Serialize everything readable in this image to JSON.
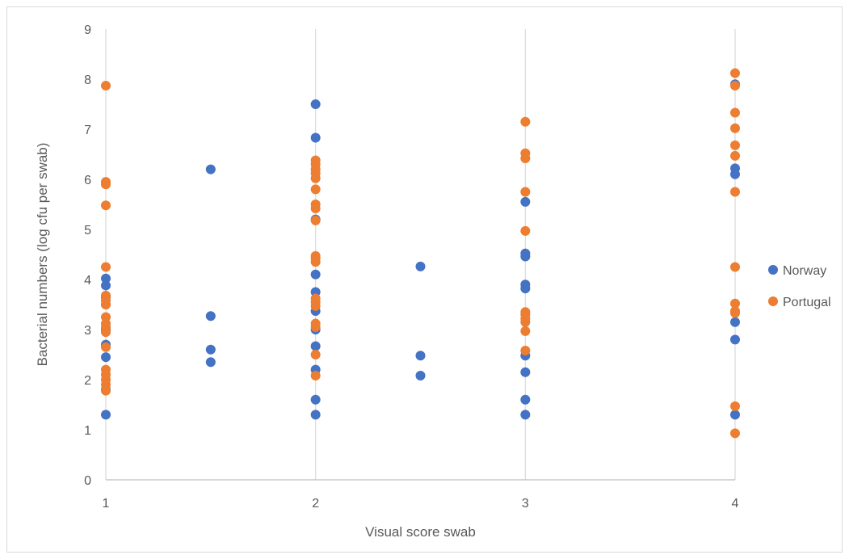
{
  "chart_data": {
    "type": "scatter",
    "title": "",
    "xlabel": "Visual score swab",
    "ylabel": "Bacterial numbers (log cfu per swab)",
    "xlim": [
      1,
      4
    ],
    "ylim": [
      0,
      9
    ],
    "x_ticks": [
      "1",
      "2",
      "3",
      "4"
    ],
    "y_ticks": [
      "0",
      "1",
      "2",
      "3",
      "4",
      "5",
      "6",
      "7",
      "8",
      "9"
    ],
    "grid": "vertical",
    "legend_position": "right",
    "series": [
      {
        "name": "Norway",
        "color": "#4472C4",
        "points": [
          [
            1,
            1.3
          ],
          [
            1,
            1.8
          ],
          [
            1,
            2.45
          ],
          [
            1,
            2.7
          ],
          [
            1,
            3.0
          ],
          [
            1,
            3.5
          ],
          [
            1,
            3.65
          ],
          [
            1,
            3.88
          ],
          [
            1,
            4.02
          ],
          [
            1.5,
            2.35
          ],
          [
            1.5,
            2.6
          ],
          [
            1.5,
            3.27
          ],
          [
            1.5,
            6.2
          ],
          [
            2,
            1.3
          ],
          [
            2,
            1.6
          ],
          [
            2,
            2.2
          ],
          [
            2,
            2.67
          ],
          [
            2,
            3.0
          ],
          [
            2,
            3.37
          ],
          [
            2,
            3.75
          ],
          [
            2,
            4.1
          ],
          [
            2,
            5.2
          ],
          [
            2,
            6.83
          ],
          [
            2,
            7.5
          ],
          [
            2.5,
            2.08
          ],
          [
            2.5,
            2.48
          ],
          [
            2.5,
            4.26
          ],
          [
            3,
            1.3
          ],
          [
            3,
            1.6
          ],
          [
            3,
            2.15
          ],
          [
            3,
            2.48
          ],
          [
            3,
            3.82
          ],
          [
            3,
            3.9
          ],
          [
            3,
            4.46
          ],
          [
            3,
            4.52
          ],
          [
            3,
            5.55
          ],
          [
            4,
            1.3
          ],
          [
            4,
            2.8
          ],
          [
            4,
            3.15
          ],
          [
            4,
            6.1
          ],
          [
            4,
            6.22
          ],
          [
            4,
            7.9
          ]
        ]
      },
      {
        "name": "Portugal",
        "color": "#ED7D31",
        "points": [
          [
            1,
            1.78
          ],
          [
            1,
            1.9
          ],
          [
            1,
            2.0
          ],
          [
            1,
            2.1
          ],
          [
            1,
            2.2
          ],
          [
            1,
            2.65
          ],
          [
            1,
            2.95
          ],
          [
            1,
            3.05
          ],
          [
            1,
            3.12
          ],
          [
            1,
            3.25
          ],
          [
            1,
            3.5
          ],
          [
            1,
            3.58
          ],
          [
            1,
            3.68
          ],
          [
            1,
            4.25
          ],
          [
            1,
            5.48
          ],
          [
            1,
            5.9
          ],
          [
            1,
            5.95
          ],
          [
            1,
            7.87
          ],
          [
            2,
            2.08
          ],
          [
            2,
            2.5
          ],
          [
            2,
            3.05
          ],
          [
            2,
            3.12
          ],
          [
            2,
            3.47
          ],
          [
            2,
            3.55
          ],
          [
            2,
            3.62
          ],
          [
            2,
            4.35
          ],
          [
            2,
            4.42
          ],
          [
            2,
            4.47
          ],
          [
            2,
            5.18
          ],
          [
            2,
            5.42
          ],
          [
            2,
            5.5
          ],
          [
            2,
            5.8
          ],
          [
            2,
            6.02
          ],
          [
            2,
            6.12
          ],
          [
            2,
            6.2
          ],
          [
            2,
            6.3
          ],
          [
            2,
            6.38
          ],
          [
            3,
            2.58
          ],
          [
            3,
            2.97
          ],
          [
            3,
            3.15
          ],
          [
            3,
            3.22
          ],
          [
            3,
            3.3
          ],
          [
            3,
            3.35
          ],
          [
            3,
            4.97
          ],
          [
            3,
            5.75
          ],
          [
            3,
            6.42
          ],
          [
            3,
            6.52
          ],
          [
            3,
            7.15
          ],
          [
            4,
            0.93
          ],
          [
            4,
            1.47
          ],
          [
            4,
            3.33
          ],
          [
            4,
            3.37
          ],
          [
            4,
            3.52
          ],
          [
            4,
            4.25
          ],
          [
            4,
            5.75
          ],
          [
            4,
            6.47
          ],
          [
            4,
            6.68
          ],
          [
            4,
            7.02
          ],
          [
            4,
            7.33
          ],
          [
            4,
            7.87
          ],
          [
            4,
            8.12
          ]
        ]
      }
    ]
  }
}
